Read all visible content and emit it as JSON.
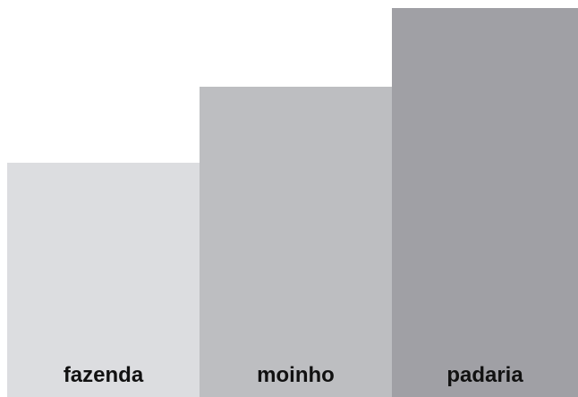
{
  "steps": [
    {
      "label": "fazenda",
      "color": "#dcdde0",
      "level": 1
    },
    {
      "label": "moinho",
      "color": "#bdbec1",
      "level": 2
    },
    {
      "label": "padaria",
      "color": "#a0a0a5",
      "level": 3
    }
  ]
}
